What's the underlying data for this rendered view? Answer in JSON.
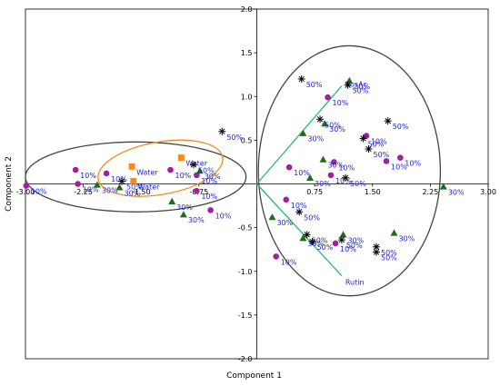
{
  "chart_data": {
    "type": "scatter",
    "title": "",
    "xlabel": "Component 1",
    "ylabel": "Component 2",
    "xlim": [
      -3.0,
      3.0
    ],
    "ylim": [
      -2.0,
      2.0
    ],
    "x_ticks": [
      "-3.00",
      "-2.25",
      "-1.50",
      "-0.75",
      "0.75",
      "1.50",
      "2.25",
      "3.00"
    ],
    "y_ticks": [
      "2.0",
      "1.5",
      "1.0",
      "0.5",
      "-0.5",
      "-1.0",
      "-1.5",
      "-2.0"
    ],
    "grid": false,
    "legend": "none",
    "colors": {
      "circle": "#a020a0",
      "triangle": "#1f6b1f",
      "square": "#f08c1e",
      "star": "#000000",
      "label": "#1f1fd6",
      "vector": "#2bb673",
      "ellipse_dark": "#444444",
      "ellipse_orange": "#f08c1e"
    },
    "points": [
      {
        "shape": "circle",
        "x": -2.35,
        "y": 0.16,
        "label": "10%"
      },
      {
        "shape": "circle",
        "x": -1.95,
        "y": 0.12,
        "label": "10%"
      },
      {
        "shape": "circle",
        "x": -2.32,
        "y": 0.0,
        "label": "10%"
      },
      {
        "shape": "circle",
        "x": -2.99,
        "y": -0.02,
        "label": "10%"
      },
      {
        "shape": "circle",
        "x": -1.12,
        "y": 0.16,
        "label": "10%"
      },
      {
        "shape": "circle",
        "x": -0.78,
        "y": 0.1,
        "label": "10%"
      },
      {
        "shape": "circle",
        "x": -0.78,
        "y": -0.08,
        "label": "10%"
      },
      {
        "shape": "circle",
        "x": -0.6,
        "y": -0.3,
        "label": "10%"
      },
      {
        "shape": "circle",
        "x": 0.38,
        "y": -0.18,
        "label": "10%"
      },
      {
        "shape": "circle",
        "x": 0.42,
        "y": 0.19,
        "label": "10%"
      },
      {
        "shape": "circle",
        "x": 0.92,
        "y": 0.99,
        "label": "10%"
      },
      {
        "shape": "circle",
        "x": 1.0,
        "y": 0.25,
        "label": "10%"
      },
      {
        "shape": "circle",
        "x": 0.96,
        "y": 0.1,
        "label": "10%"
      },
      {
        "shape": "circle",
        "x": 1.42,
        "y": 0.55,
        "label": "10%"
      },
      {
        "shape": "circle",
        "x": 1.68,
        "y": 0.26,
        "label": "10%"
      },
      {
        "shape": "circle",
        "x": 1.86,
        "y": 0.3,
        "label": "10%"
      },
      {
        "shape": "circle",
        "x": 0.25,
        "y": -0.83,
        "label": "10%"
      },
      {
        "shape": "circle",
        "x": 1.02,
        "y": -0.68,
        "label": "10%"
      },
      {
        "shape": "triangle",
        "x": -2.07,
        "y": -0.01,
        "label": "30%"
      },
      {
        "shape": "triangle",
        "x": -1.78,
        "y": -0.04,
        "label": "30%"
      },
      {
        "shape": "triangle",
        "x": -1.1,
        "y": -0.2,
        "label": "30%"
      },
      {
        "shape": "triangle",
        "x": -0.95,
        "y": -0.35,
        "label": "30%"
      },
      {
        "shape": "triangle",
        "x": -0.74,
        "y": 0.15,
        "label": "30%"
      },
      {
        "shape": "triangle",
        "x": 0.6,
        "y": 0.58,
        "label": "30%"
      },
      {
        "shape": "triangle",
        "x": 1.2,
        "y": 1.18,
        "label": "30%"
      },
      {
        "shape": "triangle",
        "x": 0.88,
        "y": 0.69,
        "label": "30%"
      },
      {
        "shape": "triangle",
        "x": 0.86,
        "y": 0.28,
        "label": "30%"
      },
      {
        "shape": "triangle",
        "x": 0.69,
        "y": 0.07,
        "label": "30%"
      },
      {
        "shape": "triangle",
        "x": 0.2,
        "y": -0.38,
        "label": "30%"
      },
      {
        "shape": "triangle",
        "x": 0.6,
        "y": -0.62,
        "label": "30%"
      },
      {
        "shape": "triangle",
        "x": 1.12,
        "y": -0.58,
        "label": "30%"
      },
      {
        "shape": "triangle",
        "x": 1.78,
        "y": -0.56,
        "label": "30%"
      },
      {
        "shape": "triangle",
        "x": 2.42,
        "y": -0.03,
        "label": "30%"
      },
      {
        "shape": "square",
        "x": -1.62,
        "y": 0.2,
        "label": "Water"
      },
      {
        "shape": "square",
        "x": -0.98,
        "y": 0.3,
        "label": "Water"
      },
      {
        "shape": "square",
        "x": -1.6,
        "y": 0.03,
        "label": "Water"
      },
      {
        "shape": "star",
        "x": -0.45,
        "y": 0.6,
        "label": "50%"
      },
      {
        "shape": "star",
        "x": -0.82,
        "y": 0.22,
        "label": "50%"
      },
      {
        "shape": "star",
        "x": -1.75,
        "y": 0.03,
        "label": "50%"
      },
      {
        "shape": "star",
        "x": 0.58,
        "y": 1.2,
        "label": "50%"
      },
      {
        "shape": "star",
        "x": 0.82,
        "y": 0.74,
        "label": "50%"
      },
      {
        "shape": "star",
        "x": 1.38,
        "y": 0.52,
        "label": "50%"
      },
      {
        "shape": "star",
        "x": 1.45,
        "y": 0.4,
        "label": "50%"
      },
      {
        "shape": "star",
        "x": 1.18,
        "y": 1.13,
        "label": "50%"
      },
      {
        "shape": "star",
        "x": 1.15,
        "y": 0.07,
        "label": "50%"
      },
      {
        "shape": "star",
        "x": 1.7,
        "y": 0.72,
        "label": "50%"
      },
      {
        "shape": "star",
        "x": 0.55,
        "y": -0.32,
        "label": "50%"
      },
      {
        "shape": "star",
        "x": 0.65,
        "y": -0.58,
        "label": "50%"
      },
      {
        "shape": "star",
        "x": 0.72,
        "y": -0.66,
        "label": "50%"
      },
      {
        "shape": "star",
        "x": 1.1,
        "y": -0.64,
        "label": "50%"
      },
      {
        "shape": "star",
        "x": 1.55,
        "y": -0.72,
        "label": "50%"
      },
      {
        "shape": "star",
        "x": 1.55,
        "y": -0.78,
        "label": "50%"
      }
    ],
    "vectors": [
      {
        "label": "RosAc",
        "x": 1.1,
        "y": 1.12
      },
      {
        "label": "Rutin",
        "x": 1.1,
        "y": -1.05
      }
    ],
    "ellipses": [
      {
        "style": "dark",
        "cx": -1.57,
        "cy": 0.08,
        "rx": 1.43,
        "ry": 0.4,
        "angle": 0
      },
      {
        "style": "orange",
        "cx": -1.25,
        "cy": 0.18,
        "rx": 0.82,
        "ry": 0.3,
        "angle": 10
      },
      {
        "style": "dark",
        "cx": 1.2,
        "cy": 0.15,
        "rx": 1.18,
        "ry": 1.43,
        "angle": 0
      }
    ]
  }
}
